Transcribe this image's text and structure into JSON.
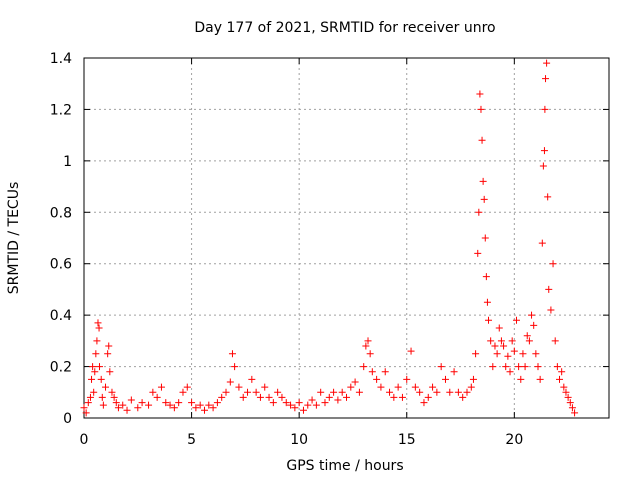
{
  "chart_data": {
    "type": "scatter",
    "title": "Day 177 of 2021, SRMTID for receiver unro",
    "xlabel": "GPS time / hours",
    "ylabel": "SRMTID / TECUs",
    "xlim": [
      0,
      24.4
    ],
    "ylim": [
      0,
      1.4
    ],
    "xticks": [
      0,
      5,
      10,
      15,
      20
    ],
    "xtick_labels": [
      "0",
      "5",
      "10",
      "15",
      "20"
    ],
    "yticks": [
      0,
      0.2,
      0.4,
      0.6,
      0.8,
      1.0,
      1.2,
      1.4
    ],
    "ytick_labels": [
      "0",
      "0.2",
      "0.4",
      "0.6",
      "0.8",
      "1",
      "1.2",
      "1.4"
    ],
    "grid": true,
    "marker": "+",
    "color": "#ff0000",
    "series": [
      {
        "name": "SRMTID",
        "points": [
          [
            0.0,
            0.04
          ],
          [
            0.1,
            0.02
          ],
          [
            0.2,
            0.06
          ],
          [
            0.3,
            0.08
          ],
          [
            0.35,
            0.15
          ],
          [
            0.4,
            0.2
          ],
          [
            0.45,
            0.1
          ],
          [
            0.5,
            0.18
          ],
          [
            0.55,
            0.25
          ],
          [
            0.6,
            0.3
          ],
          [
            0.65,
            0.37
          ],
          [
            0.7,
            0.35
          ],
          [
            0.72,
            0.2
          ],
          [
            0.8,
            0.15
          ],
          [
            0.85,
            0.08
          ],
          [
            0.9,
            0.05
          ],
          [
            1.0,
            0.12
          ],
          [
            1.1,
            0.25
          ],
          [
            1.15,
            0.28
          ],
          [
            1.2,
            0.18
          ],
          [
            1.3,
            0.1
          ],
          [
            1.4,
            0.08
          ],
          [
            1.5,
            0.06
          ],
          [
            1.6,
            0.04
          ],
          [
            1.8,
            0.05
          ],
          [
            2.0,
            0.03
          ],
          [
            2.2,
            0.07
          ],
          [
            2.5,
            0.04
          ],
          [
            2.7,
            0.06
          ],
          [
            3.0,
            0.05
          ],
          [
            3.2,
            0.1
          ],
          [
            3.4,
            0.08
          ],
          [
            3.6,
            0.12
          ],
          [
            3.8,
            0.06
          ],
          [
            4.0,
            0.05
          ],
          [
            4.2,
            0.04
          ],
          [
            4.4,
            0.06
          ],
          [
            4.6,
            0.1
          ],
          [
            4.8,
            0.12
          ],
          [
            5.0,
            0.06
          ],
          [
            5.2,
            0.04
          ],
          [
            5.4,
            0.05
          ],
          [
            5.6,
            0.03
          ],
          [
            5.8,
            0.05
          ],
          [
            6.0,
            0.04
          ],
          [
            6.2,
            0.06
          ],
          [
            6.4,
            0.08
          ],
          [
            6.6,
            0.1
          ],
          [
            6.8,
            0.14
          ],
          [
            6.9,
            0.25
          ],
          [
            7.0,
            0.2
          ],
          [
            7.2,
            0.12
          ],
          [
            7.4,
            0.08
          ],
          [
            7.6,
            0.1
          ],
          [
            7.8,
            0.15
          ],
          [
            8.0,
            0.1
          ],
          [
            8.2,
            0.08
          ],
          [
            8.4,
            0.12
          ],
          [
            8.6,
            0.08
          ],
          [
            8.8,
            0.06
          ],
          [
            9.0,
            0.1
          ],
          [
            9.2,
            0.08
          ],
          [
            9.4,
            0.06
          ],
          [
            9.6,
            0.05
          ],
          [
            9.8,
            0.04
          ],
          [
            10.0,
            0.06
          ],
          [
            10.2,
            0.03
          ],
          [
            10.4,
            0.05
          ],
          [
            10.6,
            0.07
          ],
          [
            10.8,
            0.05
          ],
          [
            11.0,
            0.1
          ],
          [
            11.2,
            0.06
          ],
          [
            11.4,
            0.08
          ],
          [
            11.6,
            0.1
          ],
          [
            11.8,
            0.07
          ],
          [
            12.0,
            0.1
          ],
          [
            12.2,
            0.08
          ],
          [
            12.4,
            0.12
          ],
          [
            12.6,
            0.14
          ],
          [
            12.8,
            0.1
          ],
          [
            13.0,
            0.2
          ],
          [
            13.1,
            0.28
          ],
          [
            13.2,
            0.3
          ],
          [
            13.3,
            0.25
          ],
          [
            13.4,
            0.18
          ],
          [
            13.6,
            0.15
          ],
          [
            13.8,
            0.12
          ],
          [
            14.0,
            0.18
          ],
          [
            14.2,
            0.1
          ],
          [
            14.4,
            0.08
          ],
          [
            14.6,
            0.12
          ],
          [
            14.8,
            0.08
          ],
          [
            15.0,
            0.15
          ],
          [
            15.2,
            0.26
          ],
          [
            15.4,
            0.12
          ],
          [
            15.6,
            0.1
          ],
          [
            15.8,
            0.06
          ],
          [
            16.0,
            0.08
          ],
          [
            16.2,
            0.12
          ],
          [
            16.4,
            0.1
          ],
          [
            16.6,
            0.2
          ],
          [
            16.8,
            0.15
          ],
          [
            17.0,
            0.1
          ],
          [
            17.2,
            0.18
          ],
          [
            17.4,
            0.1
          ],
          [
            17.6,
            0.08
          ],
          [
            17.8,
            0.1
          ],
          [
            18.0,
            0.12
          ],
          [
            18.1,
            0.15
          ],
          [
            18.2,
            0.25
          ],
          [
            18.3,
            0.64
          ],
          [
            18.35,
            0.8
          ],
          [
            18.4,
            1.26
          ],
          [
            18.45,
            1.2
          ],
          [
            18.5,
            1.08
          ],
          [
            18.55,
            0.92
          ],
          [
            18.6,
            0.85
          ],
          [
            18.65,
            0.7
          ],
          [
            18.7,
            0.55
          ],
          [
            18.75,
            0.45
          ],
          [
            18.8,
            0.38
          ],
          [
            18.9,
            0.3
          ],
          [
            19.0,
            0.2
          ],
          [
            19.1,
            0.28
          ],
          [
            19.2,
            0.25
          ],
          [
            19.3,
            0.35
          ],
          [
            19.4,
            0.3
          ],
          [
            19.5,
            0.28
          ],
          [
            19.6,
            0.2
          ],
          [
            19.7,
            0.24
          ],
          [
            19.8,
            0.18
          ],
          [
            19.9,
            0.3
          ],
          [
            20.0,
            0.26
          ],
          [
            20.1,
            0.38
          ],
          [
            20.2,
            0.2
          ],
          [
            20.3,
            0.15
          ],
          [
            20.4,
            0.25
          ],
          [
            20.5,
            0.2
          ],
          [
            20.6,
            0.32
          ],
          [
            20.7,
            0.3
          ],
          [
            20.8,
            0.4
          ],
          [
            20.9,
            0.36
          ],
          [
            21.0,
            0.25
          ],
          [
            21.1,
            0.2
          ],
          [
            21.2,
            0.15
          ],
          [
            21.3,
            0.68
          ],
          [
            21.35,
            0.98
          ],
          [
            21.4,
            1.04
          ],
          [
            21.42,
            1.2
          ],
          [
            21.45,
            1.32
          ],
          [
            21.5,
            1.38
          ],
          [
            21.55,
            0.86
          ],
          [
            21.6,
            0.5
          ],
          [
            21.7,
            0.42
          ],
          [
            21.8,
            0.6
          ],
          [
            21.9,
            0.3
          ],
          [
            22.0,
            0.2
          ],
          [
            22.1,
            0.15
          ],
          [
            22.2,
            0.18
          ],
          [
            22.3,
            0.12
          ],
          [
            22.4,
            0.1
          ],
          [
            22.5,
            0.08
          ],
          [
            22.6,
            0.06
          ],
          [
            22.7,
            0.04
          ],
          [
            22.8,
            0.02
          ]
        ]
      }
    ]
  }
}
